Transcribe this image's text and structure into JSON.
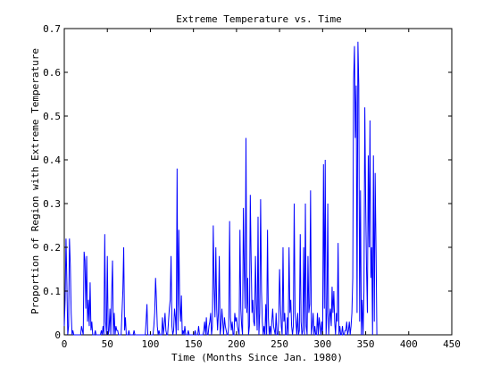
{
  "chart_data": {
    "type": "line",
    "title": "Extreme Temperature vs. Time",
    "xlabel": "Time (Months Since Jan. 1980)",
    "ylabel": "Proportion of Region with Extreme Temperature",
    "xlim": [
      0,
      450
    ],
    "ylim": [
      0,
      0.7
    ],
    "xticks": [
      0,
      50,
      100,
      150,
      200,
      250,
      300,
      350,
      400,
      450
    ],
    "yticks": [
      0,
      0.1,
      0.2,
      0.3,
      0.4,
      0.5,
      0.6,
      0.7
    ],
    "xtick_labels": [
      "0",
      "50",
      "100",
      "150",
      "200",
      "250",
      "300",
      "350",
      "400",
      "450"
    ],
    "ytick_labels": [
      "0",
      "0.1",
      "0.2",
      "0.3",
      "0.4",
      "0.5",
      "0.6",
      "0.7"
    ],
    "grid": false,
    "color": "#0000ff",
    "series": [
      {
        "values": [
          0.02,
          0.08,
          0.22,
          0.12,
          0.0,
          0.02,
          0.22,
          0.16,
          0.05,
          0.0,
          0.01,
          0.0,
          0.0,
          0.0,
          0.0,
          0.0,
          0.0,
          0.0,
          0.0,
          0.0,
          0.02,
          0.01,
          0.0,
          0.19,
          0.17,
          0.06,
          0.18,
          0.03,
          0.08,
          0.02,
          0.12,
          0.01,
          0.03,
          0.0,
          0.0,
          0.0,
          0.01,
          0.0,
          0.0,
          0.0,
          0.0,
          0.0,
          0.0,
          0.01,
          0.0,
          0.02,
          0.0,
          0.23,
          0.03,
          0.0,
          0.18,
          0.0,
          0.01,
          0.06,
          0.0,
          0.09,
          0.17,
          0.0,
          0.05,
          0.0,
          0.02,
          0.01,
          0.01,
          0.0,
          0.0,
          0.0,
          0.0,
          0.05,
          0.1,
          0.2,
          0.01,
          0.04,
          0.0,
          0.0,
          0.0,
          0.01,
          0.0,
          0.0,
          0.0,
          0.0,
          0.0,
          0.01,
          0.0,
          0.0,
          0.0,
          0.0,
          0.0,
          0.0,
          0.0,
          0.0,
          0.0,
          0.0,
          0.0,
          0.0,
          0.0,
          0.03,
          0.07,
          0.0,
          0.0,
          0.0,
          0.0,
          0.0,
          0.0,
          0.0,
          0.02,
          0.05,
          0.13,
          0.08,
          0.02,
          0.0,
          0.01,
          0.0,
          0.0,
          0.0,
          0.04,
          0.0,
          0.02,
          0.05,
          0.01,
          0.0,
          0.0,
          0.03,
          0.06,
          0.08,
          0.18,
          0.02,
          0.0,
          0.01,
          0.06,
          0.04,
          0.0,
          0.38,
          0.01,
          0.24,
          0.07,
          0.03,
          0.09,
          0.0,
          0.01,
          0.0,
          0.02,
          0.0,
          0.0,
          0.0,
          0.01,
          0.0,
          0.0,
          0.0,
          0.0,
          0.0,
          0.0,
          0.0,
          0.01,
          0.0,
          0.0,
          0.0,
          0.02,
          0.0,
          0.0,
          0.0,
          0.0,
          0.0,
          0.01,
          0.03,
          0.0,
          0.04,
          0.0,
          0.0,
          0.02,
          0.03,
          0.05,
          0.0,
          0.02,
          0.25,
          0.11,
          0.04,
          0.2,
          0.06,
          0.01,
          0.05,
          0.18,
          0.0,
          0.02,
          0.06,
          0.03,
          0.0,
          0.04,
          0.02,
          0.01,
          0.0,
          0.0,
          0.02,
          0.26,
          0.04,
          0.01,
          0.03,
          0.0,
          0.0,
          0.05,
          0.03,
          0.04,
          0.02,
          0.01,
          0.0,
          0.24,
          0.06,
          0.02,
          0.0,
          0.29,
          0.15,
          0.06,
          0.45,
          0.05,
          0.13,
          0.0,
          0.02,
          0.32,
          0.17,
          0.05,
          0.08,
          0.03,
          0.02,
          0.18,
          0.07,
          0.01,
          0.27,
          0.0,
          0.05,
          0.31,
          0.1,
          0.03,
          0.0,
          0.02,
          0.0,
          0.07,
          0.0,
          0.24,
          0.04,
          0.0,
          0.02,
          0.0,
          0.03,
          0.06,
          0.02,
          0.01,
          0.0,
          0.05,
          0.0,
          0.0,
          0.03,
          0.15,
          0.07,
          0.02,
          0.0,
          0.2,
          0.03,
          0.05,
          0.0,
          0.0,
          0.04,
          0.0,
          0.2,
          0.05,
          0.08,
          0.02,
          0.0,
          0.02,
          0.3,
          0.05,
          0.03,
          0.0,
          0.05,
          0.0,
          0.01,
          0.23,
          0.03,
          0.0,
          0.01,
          0.2,
          0.0,
          0.3,
          0.02,
          0.0,
          0.18,
          0.05,
          0.07,
          0.33,
          0.0,
          0.02,
          0.05,
          0.0,
          0.02,
          0.0,
          0.0,
          0.05,
          0.0,
          0.04,
          0.02,
          0.0,
          0.03,
          0.0,
          0.39,
          0.06,
          0.4,
          0.0,
          0.05,
          0.3,
          0.0,
          0.04,
          0.06,
          0.02,
          0.11,
          0.05,
          0.1,
          0.03,
          0.0,
          0.05,
          0.03,
          0.21,
          0.0,
          0.02,
          0.0,
          0.0,
          0.02,
          0.0,
          0.0,
          0.01,
          0.01,
          0.03,
          0.0,
          0.01,
          0.03,
          0.0,
          0.02,
          0.05,
          0.13,
          0.58,
          0.66,
          0.45,
          0.57,
          0.05,
          0.67,
          0.57,
          0.03,
          0.33,
          0.0,
          0.08,
          0.0,
          0.1,
          0.52,
          0.3,
          0.15,
          0.05,
          0.41,
          0.2,
          0.49,
          0.13,
          0.2,
          0.0,
          0.41,
          0.03,
          0.37,
          0.2,
          0.0
        ]
      }
    ]
  }
}
